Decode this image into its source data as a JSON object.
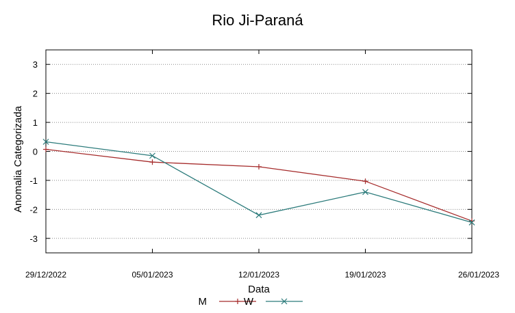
{
  "chart_data": {
    "type": "line",
    "title": "Rio Ji-Paraná",
    "xlabel": "Data",
    "ylabel": "Anomalia Categorizada",
    "categories": [
      "29/12/2022",
      "05/01/2023",
      "12/01/2023",
      "19/01/2023",
      "26/01/2023"
    ],
    "yticks": [
      "3",
      "2",
      "1",
      "0",
      "-1",
      "-2",
      "-3"
    ],
    "ylim": [
      -3.5,
      3.5
    ],
    "grid": "horizontal-dotted",
    "legend_position": "bottom-center",
    "series": [
      {
        "name": "M",
        "marker": "plus",
        "color": "#a52a2a",
        "values": [
          0.07,
          -0.37,
          -0.53,
          -1.03,
          -2.4
        ]
      },
      {
        "name": "W",
        "marker": "x",
        "color": "#2a7a7a",
        "values": [
          0.33,
          -0.15,
          -2.2,
          -1.4,
          -2.45
        ]
      }
    ]
  }
}
